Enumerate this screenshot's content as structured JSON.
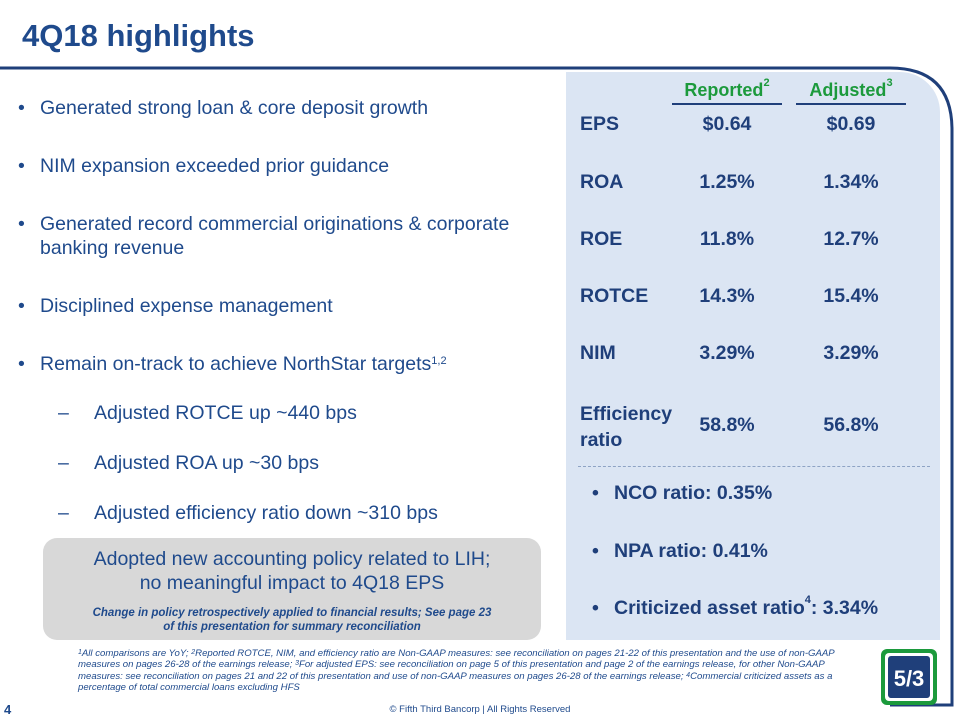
{
  "title": "4Q18 highlights",
  "bullets": [
    "Generated strong loan & core deposit growth",
    "NIM expansion exceeded prior guidance",
    "Generated record commercial originations & corporate banking revenue",
    "Disciplined expense management",
    "Remain on-track to achieve NorthStar targets"
  ],
  "bullet_5_sup": "1,2",
  "sub_bullets": [
    "Adjusted ROTCE up ~440 bps",
    "Adjusted ROA up ~30 bps",
    "Adjusted efficiency ratio down ~310 bps"
  ],
  "table": {
    "reported_label": "Reported",
    "reported_sup": "2",
    "adjusted_label": "Adjusted",
    "adjusted_sup": "3",
    "rows": [
      {
        "metric": "EPS",
        "reported": "$0.64",
        "adjusted": "$0.69"
      },
      {
        "metric": "ROA",
        "reported": "1.25%",
        "adjusted": "1.34%"
      },
      {
        "metric": "ROE",
        "reported": "11.8%",
        "adjusted": "12.7%"
      },
      {
        "metric": "ROTCE",
        "reported": "14.3%",
        "adjusted": "15.4%"
      },
      {
        "metric": "NIM",
        "reported": "3.29%",
        "adjusted": "3.29%"
      },
      {
        "metric_line1": "Efficiency",
        "metric_line2": "ratio",
        "reported": "58.8%",
        "adjusted": "56.8%"
      }
    ]
  },
  "ratios": {
    "nco": "NCO ratio: 0.35%",
    "npa": "NPA ratio: 0.41%",
    "criticized_prefix": "Criticized asset ratio",
    "criticized_sup": "4",
    "criticized_suffix": ": 3.34%"
  },
  "callout": {
    "line1": "Adopted new accounting policy related to LIH;",
    "line2": "no meaningful impact to 4Q18 EPS",
    "note_line1": "Change in policy retrospectively applied to financial results; See page 23",
    "note_line2": "of this presentation for summary reconciliation"
  },
  "footnotes": {
    "s1": "1",
    "t1": "All comparisons are YoY; ",
    "s2": "2",
    "t2": "Reported ROTCE, NIM, and efficiency ratio are Non-GAAP measures: see reconciliation on pages 21-22 of this presentation and the use of non-GAAP measures on pages 26-28 of the earnings release; ",
    "s3": "3",
    "t3": "For adjusted EPS: see reconciliation on page 5 of this presentation and page 2 of the earnings release, for other Non-GAAP measures: see reconciliation on pages 21 and 22 of this presentation and use of non-GAAP measures on pages 26-28 of the earnings release; ",
    "s4": "4",
    "t4": "Commercial criticized assets as a percentage of total commercial loans excluding HFS"
  },
  "page_number": "4",
  "copyright": "© Fifth Third Bancorp | All Rights Reserved",
  "logo_text": "5/3",
  "colors": {
    "navy": "#1f4a8c",
    "green": "#1c9a3c",
    "panel": "#dbe5f3",
    "callout": "#d8d8d8"
  }
}
